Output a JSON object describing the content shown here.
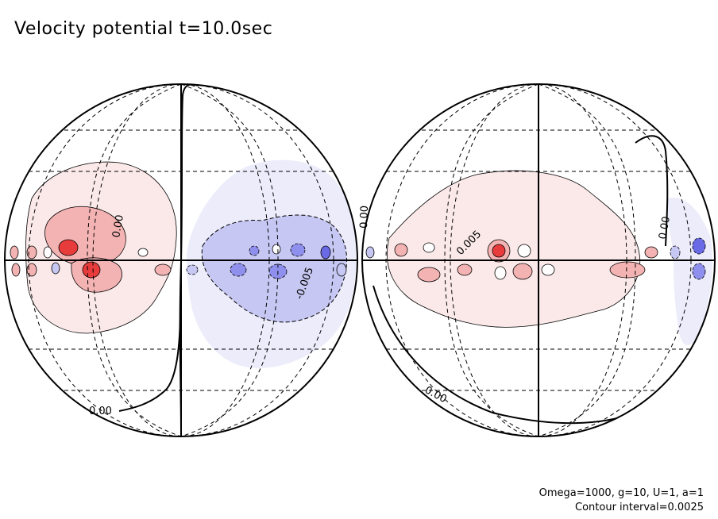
{
  "title": "Velocity potential t=10.0sec",
  "footer": {
    "params": "Omega=1000, g=10, U=1, a=1",
    "contour_interval": "Contour interval=0.0025"
  },
  "contour_labels": {
    "zero_left_bottom": "0.00",
    "zero_right_bottom": "0.00",
    "zero_right_left": "0.00",
    "zero_left_upper": "0.00",
    "zero_right_upper": "0.00",
    "neg_left": "-0.005",
    "pos_right": "0.005"
  },
  "colors": {
    "positive_light": "#fbe9e9",
    "positive_mid": "#f4b3b3",
    "positive_strong": "#e83b3b",
    "negative_light": "#ececfb",
    "negative_mid": "#c7c7f3",
    "negative_strong": "#6a6ae6"
  }
}
